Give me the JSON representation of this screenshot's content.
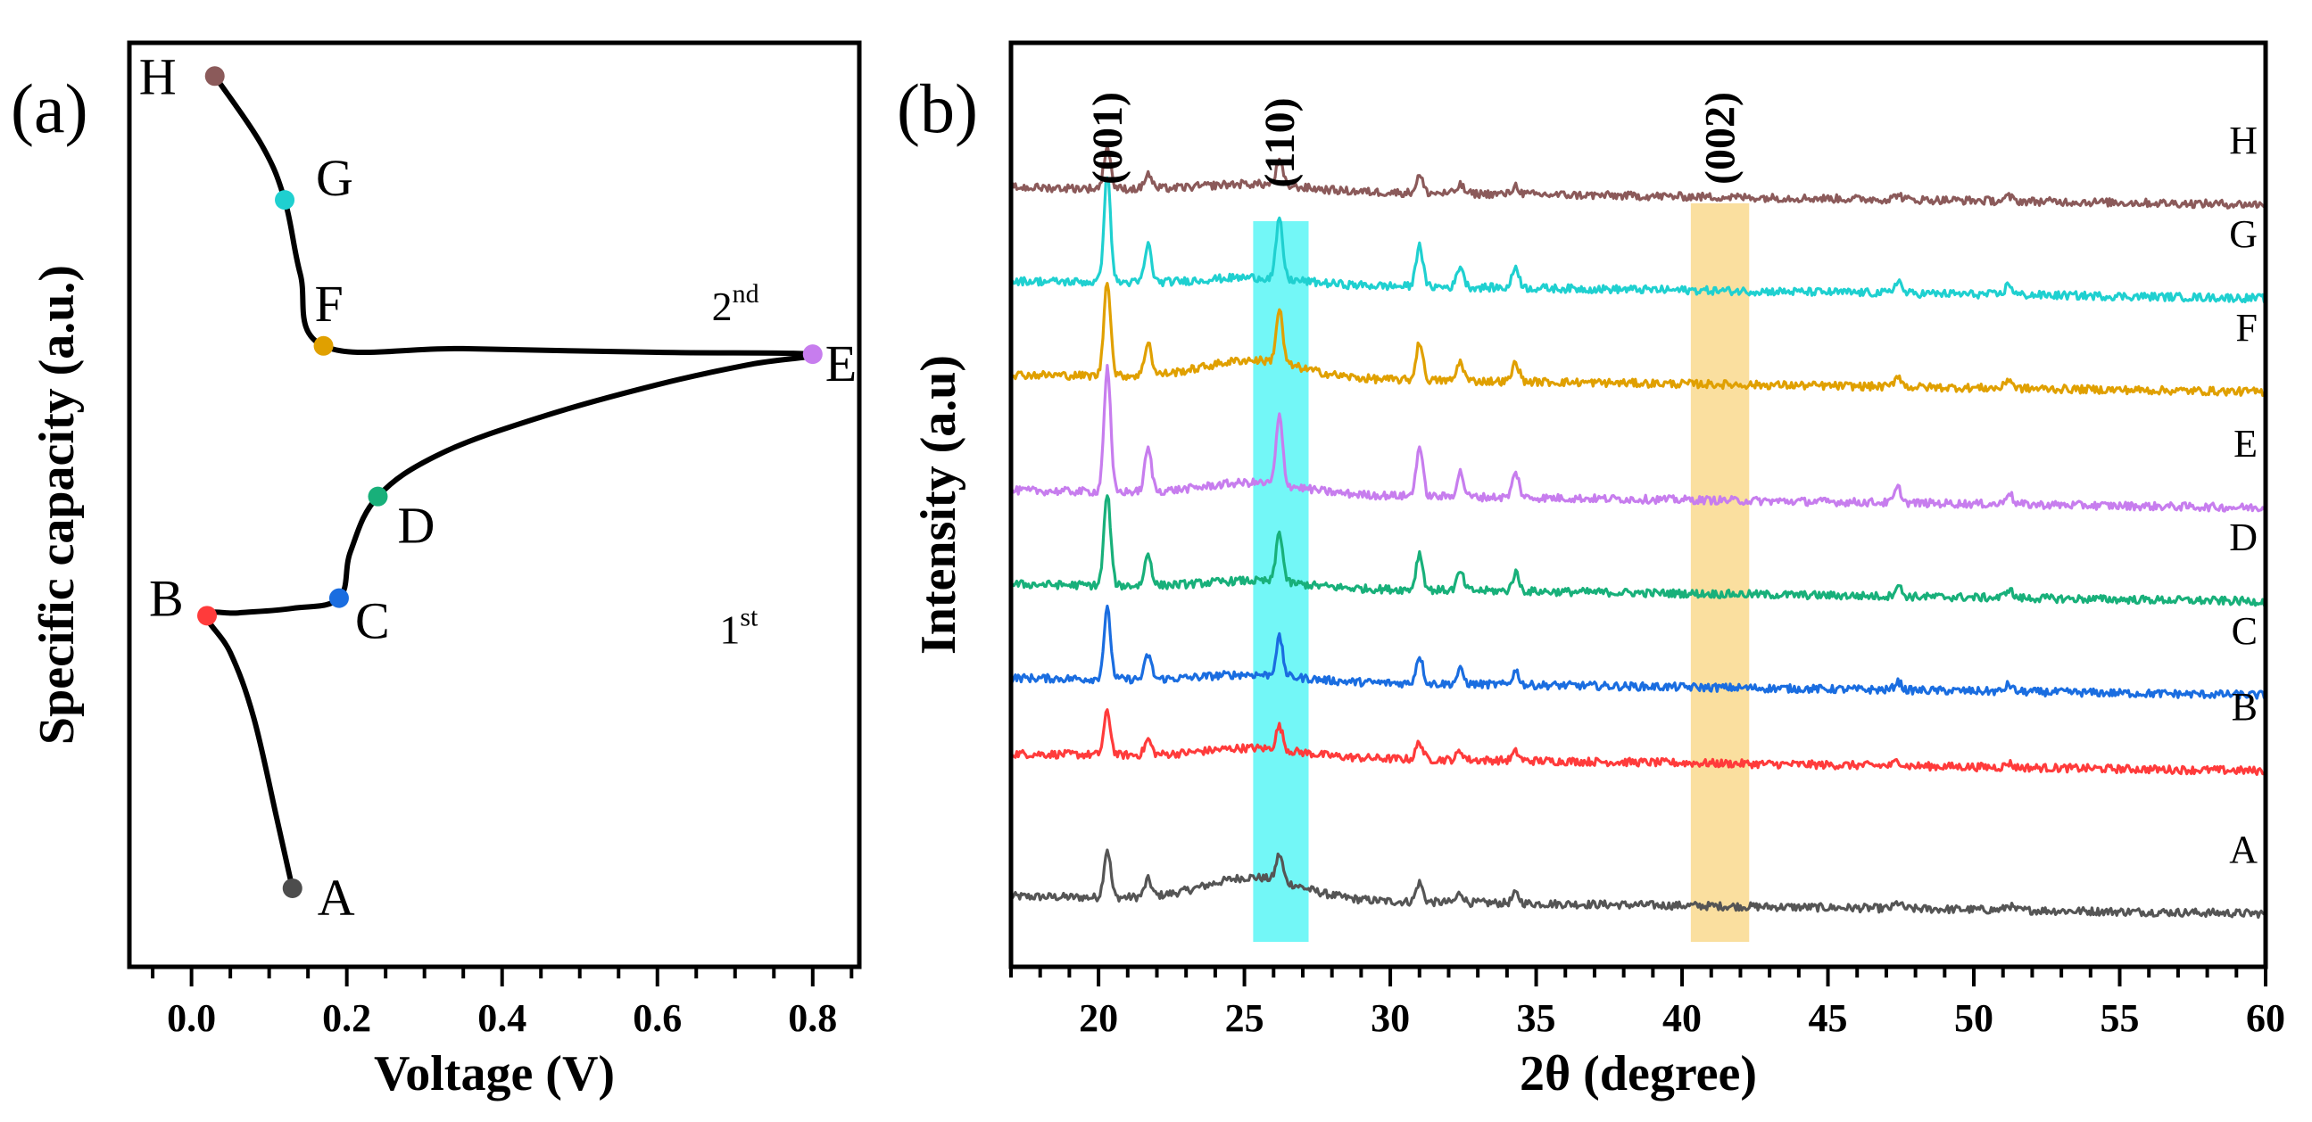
{
  "chart_data": [
    {
      "panel": "(a)",
      "type": "line",
      "xlabel": "Voltage (V)",
      "ylabel": "Specific capacity (a.u.)",
      "xlim": [
        -0.08,
        0.86
      ],
      "ylim": [
        0,
        10
      ],
      "xticks": [
        0.0,
        0.2,
        0.4,
        0.6,
        0.8
      ],
      "xtick_labels": [
        "0.0",
        "0.2",
        "0.4",
        "0.6",
        "0.8"
      ],
      "yticks_shown": false,
      "points": [
        {
          "label": "A",
          "x": 0.13,
          "y": 0.85,
          "color": "#4d4d4d"
        },
        {
          "label": "B",
          "x": 0.02,
          "y": 3.8,
          "color": "#ff3b3b"
        },
        {
          "label": "C",
          "x": 0.19,
          "y": 3.99,
          "color": "#1a6de0"
        },
        {
          "label": "D",
          "x": 0.24,
          "y": 5.09,
          "color": "#18b07a"
        },
        {
          "label": "E",
          "x": 0.8,
          "y": 6.63,
          "color": "#c77dee"
        },
        {
          "label": "F",
          "x": 0.17,
          "y": 6.72,
          "color": "#e0a000"
        },
        {
          "label": "G",
          "x": 0.12,
          "y": 8.3,
          "color": "#1fd0d0"
        },
        {
          "label": "H",
          "x": 0.03,
          "y": 9.64,
          "color": "#8b5a5a"
        }
      ],
      "path": [
        {
          "x": 0.13,
          "y": 0.85
        },
        {
          "x": 0.11,
          "y": 1.6
        },
        {
          "x": 0.08,
          "y": 2.7
        },
        {
          "x": 0.05,
          "y": 3.4
        },
        {
          "x": 0.02,
          "y": 3.8
        },
        {
          "x": 0.06,
          "y": 3.83
        },
        {
          "x": 0.13,
          "y": 3.88
        },
        {
          "x": 0.19,
          "y": 3.99
        },
        {
          "x": 0.205,
          "y": 4.5
        },
        {
          "x": 0.24,
          "y": 5.09
        },
        {
          "x": 0.32,
          "y": 5.55
        },
        {
          "x": 0.45,
          "y": 5.95
        },
        {
          "x": 0.6,
          "y": 6.3
        },
        {
          "x": 0.72,
          "y": 6.52
        },
        {
          "x": 0.8,
          "y": 6.63
        },
        {
          "x": 0.6,
          "y": 6.65
        },
        {
          "x": 0.35,
          "y": 6.69
        },
        {
          "x": 0.17,
          "y": 6.72
        },
        {
          "x": 0.14,
          "y": 7.5
        },
        {
          "x": 0.12,
          "y": 8.3
        },
        {
          "x": 0.09,
          "y": 8.9
        },
        {
          "x": 0.03,
          "y": 9.64
        }
      ],
      "annotations": [
        {
          "text": "2",
          "sup": "nd",
          "x": 0.67,
          "y": 7.0
        },
        {
          "text": "1",
          "sup": "st",
          "x": 0.68,
          "y": 3.5
        }
      ]
    },
    {
      "panel": "(b)",
      "type": "line",
      "xlabel": "2θ (degree)",
      "ylabel": "Intensity (a.u)",
      "xlim": [
        17,
        60
      ],
      "xticks": [
        20,
        25,
        30,
        35,
        40,
        45,
        50,
        55,
        60
      ],
      "xtick_labels": [
        "20",
        "25",
        "30",
        "35",
        "40",
        "45",
        "50",
        "55",
        "60"
      ],
      "yticks_shown": false,
      "highlight_bands": [
        {
          "label": "(110)",
          "from": 25.3,
          "to": 27.2,
          "color": "#00f0f0"
        },
        {
          "label": "(002)",
          "from": 40.3,
          "to": 42.3,
          "color": "#f5c040"
        }
      ],
      "peak_labels": [
        {
          "label": "(001)",
          "x": 20.3
        },
        {
          "label": "(110)",
          "x": 26.2
        },
        {
          "label": "(002)",
          "x": 41.3
        }
      ],
      "peaks_common": [
        {
          "pos": 20.3,
          "h": 1.0
        },
        {
          "pos": 21.7,
          "h": 0.35
        },
        {
          "pos": 26.2,
          "h": 0.55
        },
        {
          "pos": 31.0,
          "h": 0.4
        },
        {
          "pos": 32.4,
          "h": 0.2
        },
        {
          "pos": 34.3,
          "h": 0.2
        },
        {
          "pos": 47.4,
          "h": 0.12
        },
        {
          "pos": 51.2,
          "h": 0.1
        }
      ],
      "series": [
        {
          "name": "A",
          "offset": 0.0,
          "color": "#555555",
          "scale": 0.9,
          "hump": 1.0
        },
        {
          "name": "B",
          "offset": 1.6,
          "color": "#ff3b3b",
          "scale": 0.8,
          "hump": 0.4
        },
        {
          "name": "C",
          "offset": 2.45,
          "color": "#1a6de0",
          "scale": 1.3,
          "hump": 0.3
        },
        {
          "name": "D",
          "offset": 3.5,
          "color": "#18b07a",
          "scale": 1.7,
          "hump": 0.3
        },
        {
          "name": "E",
          "offset": 4.55,
          "color": "#c77dee",
          "scale": 2.3,
          "hump": 0.5
        },
        {
          "name": "F",
          "offset": 5.85,
          "color": "#e0a000",
          "scale": 1.8,
          "hump": 0.8
        },
        {
          "name": "G",
          "offset": 6.9,
          "color": "#1fd0d0",
          "scale": 2.0,
          "hump": 0.3
        },
        {
          "name": "H",
          "offset": 7.95,
          "color": "#8b5a5a",
          "scale": 0.8,
          "hump": 0.3
        }
      ]
    }
  ]
}
